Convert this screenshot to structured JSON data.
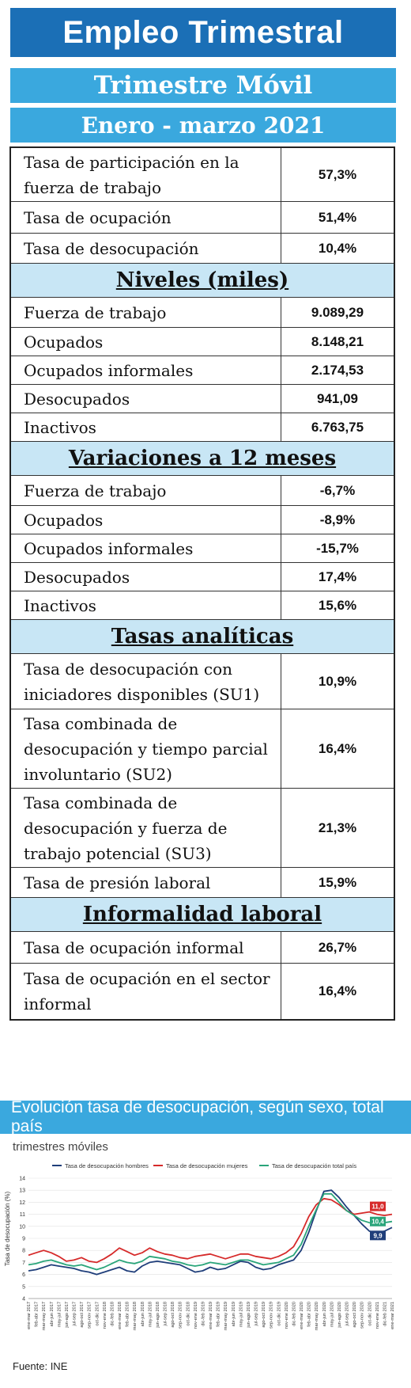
{
  "header": {
    "title": "Empleo Trimestral",
    "subtitle": "Trimestre Móvil",
    "period": "Enero - marzo 2021"
  },
  "rates": [
    {
      "label": "Tasa de participación en la fuerza de trabajo",
      "value": "57,3%"
    },
    {
      "label": "Tasa de ocupación",
      "value": "51,4%"
    },
    {
      "label": "Tasa de desocupación",
      "value": "10,4%"
    }
  ],
  "levels": {
    "title": "Niveles (miles)",
    "rows": [
      {
        "label": "Fuerza de trabajo",
        "value": "9.089,29"
      },
      {
        "label": "Ocupados",
        "value": "8.148,21"
      },
      {
        "label": "Ocupados informales",
        "value": "2.174,53"
      },
      {
        "label": "Desocupados",
        "value": "941,09"
      },
      {
        "label": "Inactivos",
        "value": "6.763,75"
      }
    ]
  },
  "variations": {
    "title": "Variaciones a 12 meses",
    "rows": [
      {
        "label": "Fuerza de trabajo",
        "value": "-6,7%"
      },
      {
        "label": "Ocupados",
        "value": "-8,9%"
      },
      {
        "label": "Ocupados informales",
        "value": "-15,7%"
      },
      {
        "label": "Desocupados",
        "value": "17,4%"
      },
      {
        "label": "Inactivos",
        "value": "15,6%"
      }
    ]
  },
  "analytic": {
    "title": "Tasas analíticas",
    "rows": [
      {
        "label": "Tasa de desocupación con iniciadores disponibles (SU1)",
        "value": "10,9%"
      },
      {
        "label": "Tasa combinada de desocupación y tiempo parcial involuntario (SU2)",
        "value": "16,4%"
      },
      {
        "label": "Tasa combinada de desocupación y fuerza de trabajo potencial (SU3)",
        "value": "21,3%"
      },
      {
        "label": "Tasa de presión laboral",
        "value": "15,9%"
      }
    ]
  },
  "informality": {
    "title": "Informalidad laboral",
    "rows": [
      {
        "label": "Tasa de ocupación informal",
        "value": "26,7%"
      },
      {
        "label": "Tasa de ocupación en el sector informal",
        "value": "16,4%"
      }
    ]
  },
  "chart_section": {
    "banner": "Evolución tasa de desocupación, según sexo, total país",
    "subtitle": "trimestres móviles",
    "source": "Fuente: INE"
  },
  "chart_data": {
    "type": "line",
    "ylabel": "Tasa de desocupación (%)",
    "ylim": [
      4,
      14
    ],
    "yticks": [
      4,
      5,
      6,
      7,
      8,
      9,
      10,
      11,
      12,
      13,
      14
    ],
    "grid": true,
    "legend_placement": "top",
    "categories": [
      "ene-mar 2017",
      "feb-abr 2017",
      "mar-may 2017",
      "abr-jun 2017",
      "may-jul 2017",
      "jun-ago 2017",
      "jul-sep 2017",
      "ago-oct 2017",
      "sep-nov 2017",
      "oct-dic 2017",
      "nov-ene 2018",
      "dic-feb 2018",
      "ene-mar 2018",
      "feb-abr 2018",
      "mar-may 2018",
      "abr-jun 2018",
      "may-jul 2018",
      "jun-ago 2018",
      "jul-sep 2018",
      "ago-oct 2018",
      "sep-nov 2018",
      "oct-dic 2018",
      "nov-ene 2019",
      "dic-feb 2019",
      "ene-mar 2019",
      "feb-abr 2019",
      "mar-may 2019",
      "abr-jun 2019",
      "may-jul 2019",
      "jun-ago 2019",
      "jul-sep 2019",
      "ago-oct 2019",
      "sep-nov 2019",
      "oct-dic 2019",
      "nov-ene 2020",
      "dic-feb 2020",
      "ene-mar 2020",
      "feb-abr 2020",
      "mar-may 2020",
      "abr-jun 2020",
      "may-jul 2020",
      "jun-ago 2020",
      "jul-sep 2020",
      "ago-oct 2020",
      "sep-nov 2020",
      "oct-dic 2020",
      "nov-ene 2021",
      "dic-feb 2021",
      "ene-mar 2021"
    ],
    "series": [
      {
        "name": "Tasa de desocupación hombres",
        "color": "#1f3e7a",
        "values": [
          6.3,
          6.4,
          6.6,
          6.8,
          6.7,
          6.6,
          6.5,
          6.3,
          6.2,
          6.0,
          6.2,
          6.4,
          6.6,
          6.3,
          6.2,
          6.7,
          7.0,
          7.1,
          7.0,
          6.9,
          6.8,
          6.5,
          6.2,
          6.3,
          6.6,
          6.4,
          6.5,
          6.8,
          7.1,
          7.0,
          6.6,
          6.4,
          6.5,
          6.8,
          7.0,
          7.2,
          8.0,
          9.5,
          11.3,
          12.9,
          13.0,
          12.4,
          11.6,
          10.9,
          10.2,
          9.6,
          9.4,
          9.6,
          9.9
        ]
      },
      {
        "name": "Tasa de desocupación mujeres",
        "color": "#d62a2a",
        "values": [
          7.6,
          7.8,
          8.0,
          7.8,
          7.5,
          7.1,
          7.2,
          7.4,
          7.1,
          7.0,
          7.3,
          7.7,
          8.2,
          7.9,
          7.6,
          7.8,
          8.2,
          7.9,
          7.7,
          7.6,
          7.4,
          7.3,
          7.5,
          7.6,
          7.7,
          7.5,
          7.3,
          7.5,
          7.7,
          7.7,
          7.5,
          7.4,
          7.3,
          7.5,
          7.8,
          8.3,
          9.4,
          10.8,
          11.8,
          12.3,
          12.2,
          11.8,
          11.3,
          11.0,
          11.1,
          11.2,
          11.0,
          10.9,
          11.0
        ]
      },
      {
        "name": "Tasa de desocupación total país",
        "color": "#2aa57a",
        "values": [
          6.8,
          6.9,
          7.1,
          7.2,
          7.0,
          6.8,
          6.7,
          6.8,
          6.6,
          6.4,
          6.6,
          6.9,
          7.2,
          7.0,
          6.9,
          7.1,
          7.5,
          7.4,
          7.3,
          7.1,
          7.0,
          6.8,
          6.7,
          6.8,
          7.0,
          6.9,
          6.8,
          7.0,
          7.2,
          7.2,
          7.0,
          6.8,
          6.9,
          7.0,
          7.3,
          7.6,
          8.5,
          10.0,
          11.4,
          12.7,
          12.7,
          12.0,
          11.3,
          10.9,
          10.5,
          10.3,
          10.2,
          10.3,
          10.4
        ]
      }
    ],
    "end_labels": [
      "11,0",
      "10,4",
      "9,9"
    ]
  }
}
